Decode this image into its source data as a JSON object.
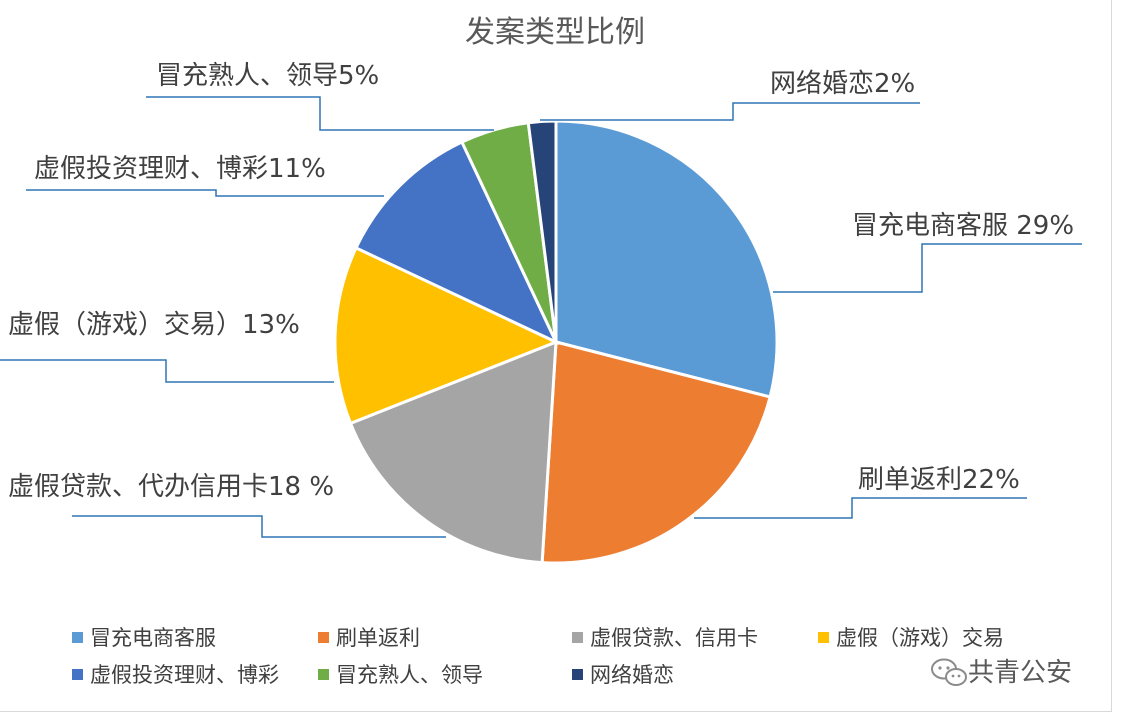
{
  "chart_data": {
    "type": "pie",
    "title": "发案类型比例",
    "slices": [
      {
        "category": "冒充电商客服",
        "value": 29,
        "callout": "冒充电商客服 29%",
        "color": "#5b9bd5"
      },
      {
        "category": "刷单返利",
        "value": 22,
        "callout": "刷单返利22%",
        "color": "#ed7d31"
      },
      {
        "category": "虚假贷款、信用卡",
        "value": 18,
        "callout": "虚假贷款、代办信用卡18 %",
        "color": "#a5a5a5"
      },
      {
        "category": "虚假（游戏）交易",
        "value": 13,
        "callout": "虚假（游戏）交易）13%",
        "color": "#ffc000"
      },
      {
        "category": "虚假投资理财、博彩",
        "value": 11,
        "callout": "虚假投资理财、博彩11%",
        "color": "#4472c4"
      },
      {
        "category": "冒充熟人、领导",
        "value": 5,
        "callout": "冒充熟人、领导5%",
        "color": "#70ad47"
      },
      {
        "category": "网络婚恋",
        "value": 2,
        "callout": "网络婚恋2%",
        "color": "#264478"
      }
    ],
    "legend": {
      "placement": "bottom",
      "items": [
        "冒充电商客服",
        "刷单返利",
        "虚假贷款、信用卡",
        "虚假（游戏）交易",
        "虚假投资理财、博彩",
        "冒充熟人、领导",
        "网络婚恋"
      ]
    }
  },
  "colors": {
    "leader_line": "#2e75b6"
  },
  "watermark": {
    "icon": "wechat-icon",
    "text": "共青公安"
  }
}
